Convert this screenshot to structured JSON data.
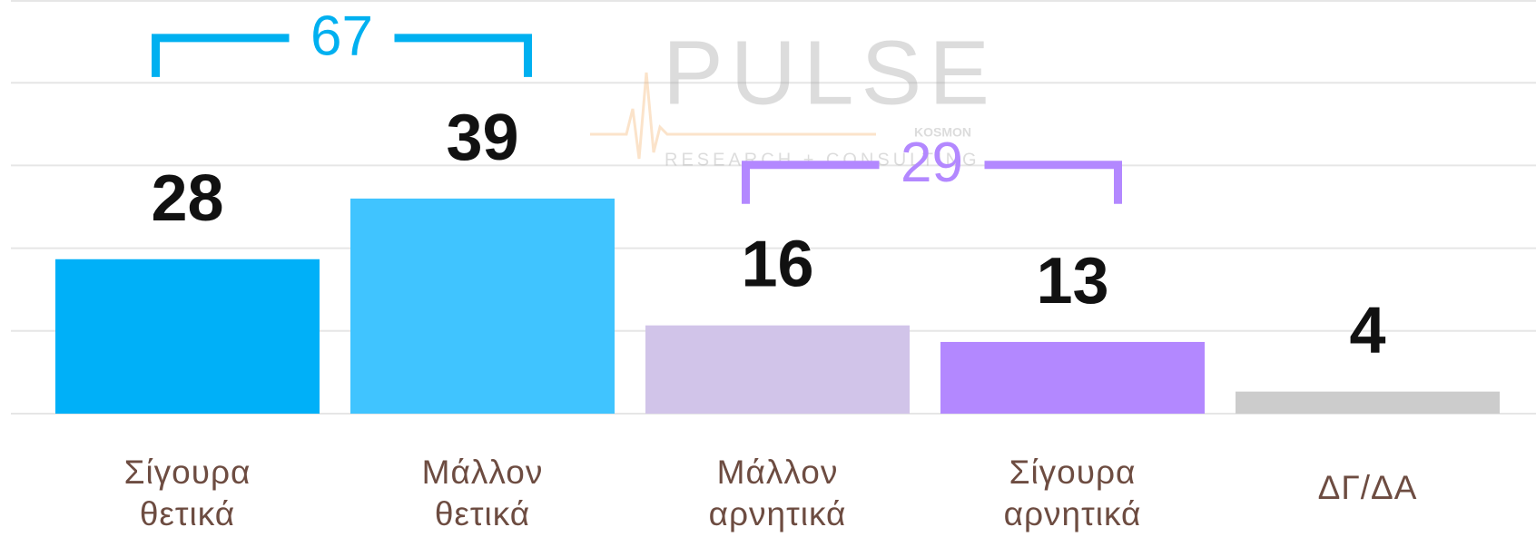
{
  "chart_data": {
    "type": "bar",
    "categories": [
      "Σίγουρα θετικά",
      "Μάλλον θετικά",
      "Μάλλον αρνητικά",
      "Σίγουρα αρνητικά",
      "ΔΓ/ΔΑ"
    ],
    "values": [
      28,
      39,
      16,
      13,
      4
    ],
    "colors": [
      "#00b0f8",
      "#40c4ff",
      "#d1c4e9",
      "#b388ff",
      "#cccccc"
    ],
    "ylim": [
      0,
      75
    ],
    "yticks": [
      0,
      15,
      30,
      45,
      60,
      75
    ],
    "grid": true,
    "annotations": [
      {
        "value": 67,
        "from": 0,
        "to": 1,
        "color": "#00b0f0"
      },
      {
        "value": 29,
        "from": 2,
        "to": 3,
        "color": "#b388ff"
      }
    ],
    "watermark": {
      "brand": "PULSE",
      "sub": "RESEARCH + CONSULTING",
      "tag": "KOSMON"
    }
  }
}
